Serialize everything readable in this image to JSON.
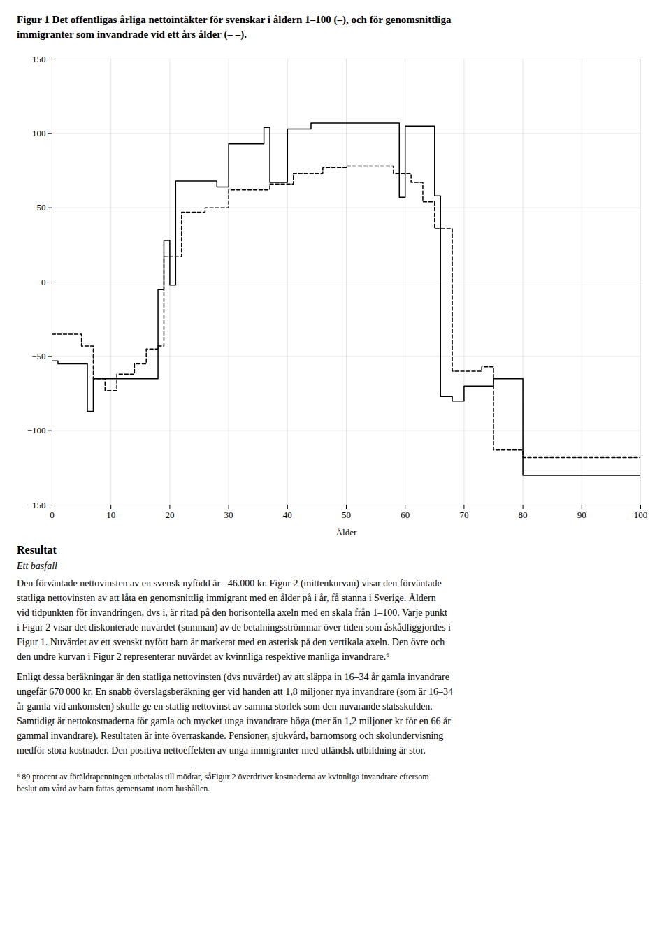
{
  "chart_data": {
    "type": "step",
    "title": "Figur 1 Det offentligas årliga nettointäkter för svenskar i åldern 1–100 (–), och för genomsnittliga\nimmigranter som invandrade vid ett års ålder (– –).",
    "xlabel": "Ålder",
    "xlim": [
      0,
      100
    ],
    "ylim": [
      -150,
      150
    ],
    "xticks": [
      0,
      10,
      20,
      30,
      40,
      50,
      60,
      70,
      80,
      90,
      100
    ],
    "yticks": [
      {
        "value": -150,
        "label": "−150"
      },
      {
        "value": -100,
        "label": "−100"
      },
      {
        "value": -50,
        "label": "−50"
      },
      0,
      50,
      100,
      150
    ],
    "grid": true,
    "series": [
      {
        "line_style": "solid",
        "x": [
          0,
          1,
          1,
          6,
          6,
          7,
          7,
          18,
          18,
          19,
          19,
          20,
          20,
          21,
          21,
          28,
          28,
          30,
          30,
          36,
          36,
          37,
          37,
          40,
          40,
          44,
          44,
          48,
          48,
          59,
          59,
          60,
          60,
          65,
          65,
          66,
          66,
          68,
          68,
          70,
          70,
          75,
          75,
          80,
          80,
          100
        ],
        "values": [
          -53,
          -53,
          -55,
          -55,
          -87,
          -87,
          -65,
          -65,
          -5,
          -5,
          28,
          28,
          -2,
          -2,
          68,
          68,
          64,
          64,
          93,
          93,
          104,
          104,
          67,
          67,
          103,
          103,
          107,
          107,
          107,
          107,
          57,
          57,
          105,
          105,
          58,
          58,
          -77,
          -77,
          -80,
          -80,
          -70,
          -70,
          -65,
          -65,
          -130,
          -130
        ]
      },
      {
        "line_style": "dashed",
        "x": [
          0,
          5,
          5,
          7,
          7,
          9,
          9,
          11,
          11,
          14,
          14,
          16,
          16,
          18,
          18,
          19,
          19,
          22,
          22,
          26,
          26,
          30,
          30,
          37,
          37,
          41,
          41,
          46,
          46,
          50,
          50,
          58,
          58,
          61,
          61,
          63,
          63,
          65,
          65,
          68,
          68,
          73,
          73,
          75,
          75,
          80,
          80,
          100
        ],
        "values": [
          -35,
          -35,
          -43,
          -43,
          -65,
          -65,
          -73,
          -73,
          -62,
          -62,
          -55,
          -55,
          -45,
          -45,
          -43,
          -43,
          17,
          17,
          47,
          47,
          50,
          50,
          62,
          62,
          66,
          66,
          73,
          73,
          77,
          77,
          78,
          78,
          73,
          73,
          67,
          67,
          54,
          54,
          36,
          36,
          -60,
          -60,
          -57,
          -57,
          -113,
          -113,
          -118,
          -118
        ]
      }
    ],
    "annotations": [
      "Resultat",
      "Ett basfall",
      "Den förväntade nettovinsten av en svensk nyfödd är –46.000 kr. ⁣Figur 2⁣ (mittenkurvan) visar den förväntade\nstatliga nettovinsten av att låta en genomsnittlig immigrant med en ålder på ⁣i⁣ år, få stanna i Sverige. Åldern\nvid tidpunkten för invandringen, dvs ⁣i⁣, är ritad på den horisontella axeln med en skala från 1–100. Varje punkt\ni ⁣Figur 2⁣ visar det diskonterade nuvärdet (summan) av de betalningsströmmar över tiden som åskådliggjordes i\n⁣Figur 1⁣. Nuvärdet av ett svenskt nyfött barn är markerat med en asterisk på den vertikala axeln. Den övre och\nden undre kurvan i ⁣Figur 2⁣ representerar nuvärdet av kvinnliga respektive manliga invandrare.⁶",
      "Enligt dessa beräkningar är den statliga nettovinsten (dvs nuvärdet) av att släppa in 16–34 år gamla invandrare\nungefär 670 000 kr. En snabb överslagsberäkning ger vid handen att 1,8 miljoner nya invandrare (som är 16–34\når gamla vid ankomsten) skulle ge en statlig nettovinst av samma storlek som den nuvarande statsskulden.\nSamtidigt är nettokostnaderna för gamla och mycket unga invandrare höga (mer än 1,2 miljoner kr för en 66 år\ngammal invandrare). Resultaten är inte överraskande. Pensioner, sjukvård, barnomsorg och skolundervisning\nmedför stora kostnader. Den positiva nettoeffekten av unga immigranter med utländsk utbildning är stor.",
      "⁶ 89 procent av föräldrapenningen utbetalas till mödrar, så⁣Figur 2⁣ överdriver kostnaderna av kvinnliga invandrare eftersom\nbeslut om vård av barn fattas gemensamt inom hushållen."
    ]
  }
}
